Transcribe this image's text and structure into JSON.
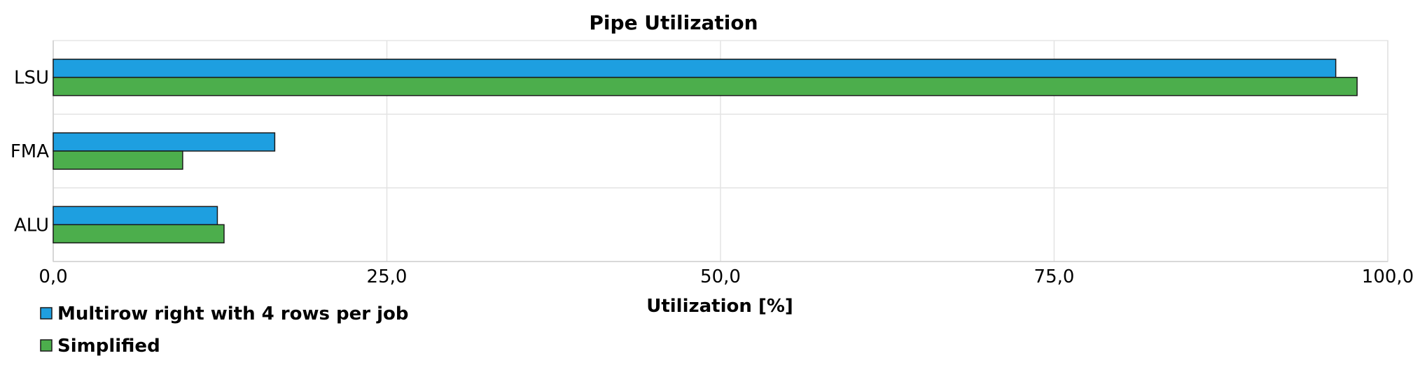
{
  "chart_data": {
    "type": "bar",
    "orientation": "horizontal",
    "title": "Pipe Utilization",
    "xlabel": "Utilization [%]",
    "ylabel": "",
    "categories": [
      "LSU",
      "FMA",
      "ALU"
    ],
    "series": [
      {
        "name": "Multirow right with 4 rows per job",
        "values": [
          96.1,
          16.6,
          12.3
        ],
        "color": "#1e9fe0"
      },
      {
        "name": "Simplified",
        "values": [
          97.7,
          9.7,
          12.8
        ],
        "color": "#4cae4c"
      }
    ],
    "xlim": [
      0,
      100
    ],
    "x_ticks": [
      0,
      25,
      50,
      75,
      100
    ],
    "x_tick_labels": [
      "0,0",
      "25,0",
      "50,0",
      "75,0",
      "100,0"
    ],
    "grid": true,
    "legend_position": "bottom-left"
  }
}
